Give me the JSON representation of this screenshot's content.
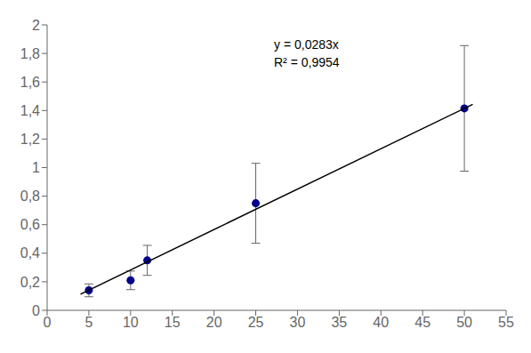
{
  "chart_data": {
    "type": "scatter",
    "series": [
      {
        "type": "scatter",
        "color": "#00008B",
        "x": [
          5,
          10,
          12,
          25,
          50
        ],
        "values": [
          0.14,
          0.21,
          0.35,
          0.75,
          1.415
        ],
        "yerr": [
          0.045,
          0.065,
          0.105,
          0.28,
          0.44
        ]
      },
      {
        "type": "line",
        "color": "#000000",
        "x": [
          4,
          51
        ],
        "values": [
          0.1132,
          1.4433
        ]
      }
    ],
    "annotations": [
      "y = 0,0283x",
      "R² = 0,9954"
    ],
    "xlim": [
      0,
      55
    ],
    "ylim": [
      0,
      2.0
    ],
    "xticks": [
      0,
      5,
      10,
      15,
      20,
      25,
      30,
      35,
      40,
      45,
      50,
      55
    ],
    "yticks": [
      0,
      {
        "value": 0.2,
        "label": "0,2"
      },
      {
        "value": 0.4,
        "label": "0,4"
      },
      {
        "value": 0.6,
        "label": "0,6"
      },
      {
        "value": 0.8,
        "label": "0,8"
      },
      1,
      {
        "value": 1.2,
        "label": "1,2"
      },
      {
        "value": 1.4,
        "label": "1,4"
      },
      {
        "value": 1.6,
        "label": "1,6"
      },
      {
        "value": 1.8,
        "label": "1,8"
      },
      2
    ],
    "grid": false
  }
}
